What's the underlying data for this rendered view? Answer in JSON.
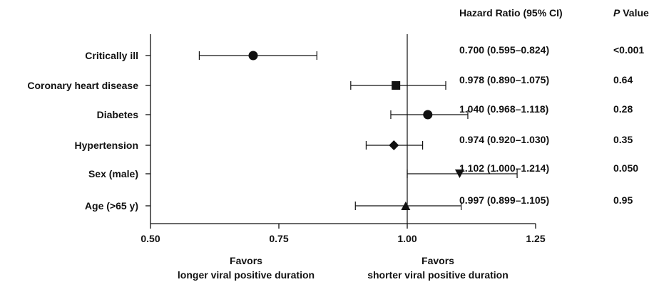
{
  "chart_data": {
    "type": "forest",
    "columns": {
      "hr_header": "Hazard Ratio (95% CI)",
      "p_header_italic": "P",
      "p_header_rest": " Value"
    },
    "rows": [
      {
        "label": "Critically ill",
        "estimate": 0.7,
        "lower": 0.595,
        "upper": 0.824,
        "marker": "circle",
        "hr_text": "0.700 (0.595–0.824)",
        "p_text": "<0.001"
      },
      {
        "label": "Coronary heart disease",
        "estimate": 0.978,
        "lower": 0.89,
        "upper": 1.075,
        "marker": "square",
        "hr_text": "0.978 (0.890–1.075)",
        "p_text": "0.64"
      },
      {
        "label": "Diabetes",
        "estimate": 1.04,
        "lower": 0.968,
        "upper": 1.118,
        "marker": "circle",
        "hr_text": "1.040 (0.968–1.118)",
        "p_text": "0.28"
      },
      {
        "label": "Hypertension",
        "estimate": 0.974,
        "lower": 0.92,
        "upper": 1.03,
        "marker": "diamond",
        "hr_text": "0.974 (0.920–1.030)",
        "p_text": "0.35"
      },
      {
        "label": "Sex (male)",
        "estimate": 1.102,
        "lower": 1.0,
        "upper": 1.214,
        "marker": "triangle-down",
        "hr_text": "1.102 (1.000–1.214)",
        "p_text": "0.050"
      },
      {
        "label": "Age (>65 y)",
        "estimate": 0.997,
        "lower": 0.899,
        "upper": 1.105,
        "marker": "triangle-up",
        "hr_text": "0.997 (0.899–1.105)",
        "p_text": "0.95"
      }
    ],
    "x_axis": {
      "min": 0.5,
      "max": 1.25,
      "ticks": [
        0.5,
        0.75,
        1.0,
        1.25
      ],
      "tick_labels": [
        "0.50",
        "0.75",
        "1.00",
        "1.25"
      ],
      "reference_line": 1.0
    },
    "favors_left": [
      "Favors",
      "longer viral positive duration"
    ],
    "favors_right": [
      "Favors",
      "shorter viral positive duration"
    ]
  }
}
